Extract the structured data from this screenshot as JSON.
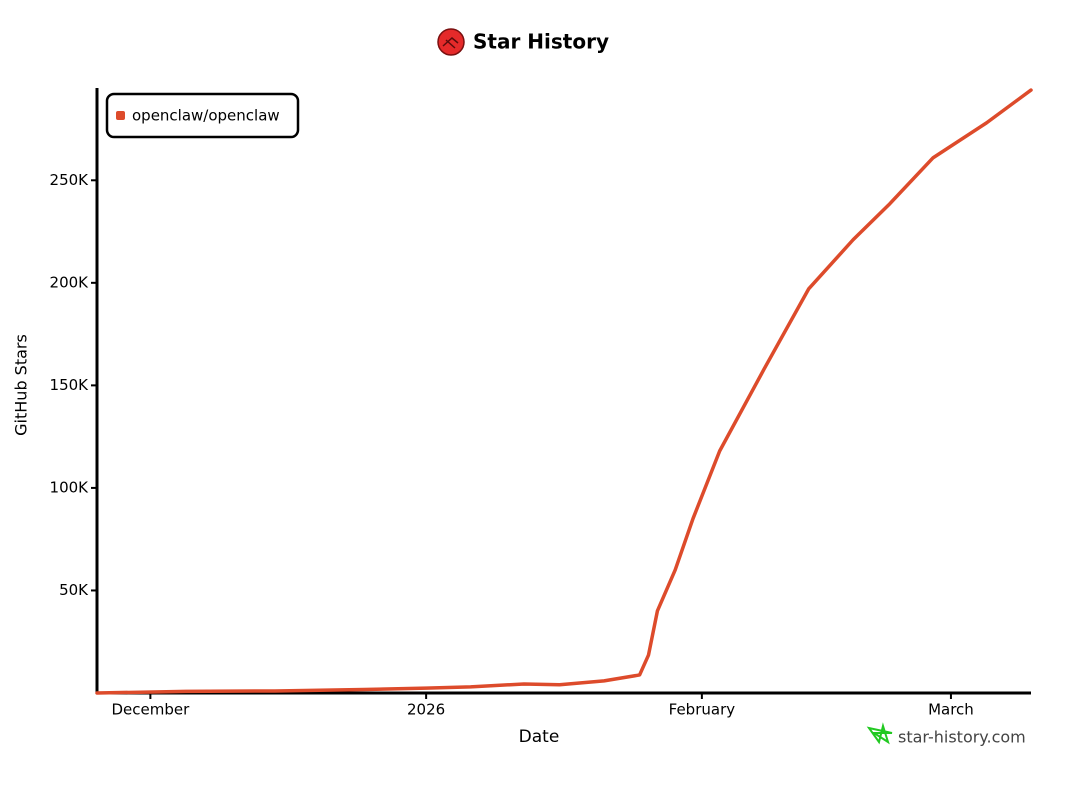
{
  "chart_data": {
    "type": "line",
    "title": "Star History",
    "watermark": "star-history.com",
    "x_label": "Date",
    "y_label": "GitHub Stars",
    "legend": "top-left",
    "x": [
      "2025-11-25",
      "2025-12-05",
      "2025-12-15",
      "2025-12-25",
      "2026-01-01",
      "2026-01-06",
      "2026-01-12",
      "2026-01-16",
      "2026-01-21",
      "2026-01-25",
      "2026-01-26",
      "2026-01-27",
      "2026-01-29",
      "2026-01-31",
      "2026-02-03",
      "2026-02-08",
      "2026-02-13",
      "2026-02-18",
      "2026-02-22",
      "2026-02-27",
      "2026-03-05",
      "2026-03-10"
    ],
    "series": [
      {
        "name": "openclaw/openclaw",
        "color": "#dd4b2b",
        "values": [
          0,
          800,
          1000,
          1700,
          2400,
          3000,
          4400,
          4000,
          5900,
          8800,
          18500,
          40000,
          60000,
          85000,
          118000,
          158000,
          197000,
          221000,
          238000,
          261000,
          278000,
          294000
        ]
      }
    ],
    "xlim": [
      "2025-11-25",
      "2026-03-10"
    ],
    "xticks": [
      {
        "value": "2025-12-01",
        "label": "December"
      },
      {
        "value": "2026-01-01",
        "label": "2026"
      },
      {
        "value": "2026-02-01",
        "label": "February"
      },
      {
        "value": "2026-03-01",
        "label": "March"
      }
    ],
    "ylim": [
      0,
      295000
    ],
    "yticks": [
      {
        "value": 50000,
        "label": "50K"
      },
      {
        "value": 100000,
        "label": "100K"
      },
      {
        "value": 150000,
        "label": "150K"
      },
      {
        "value": 200000,
        "label": "200K"
      },
      {
        "value": 250000,
        "label": "250K"
      }
    ]
  }
}
